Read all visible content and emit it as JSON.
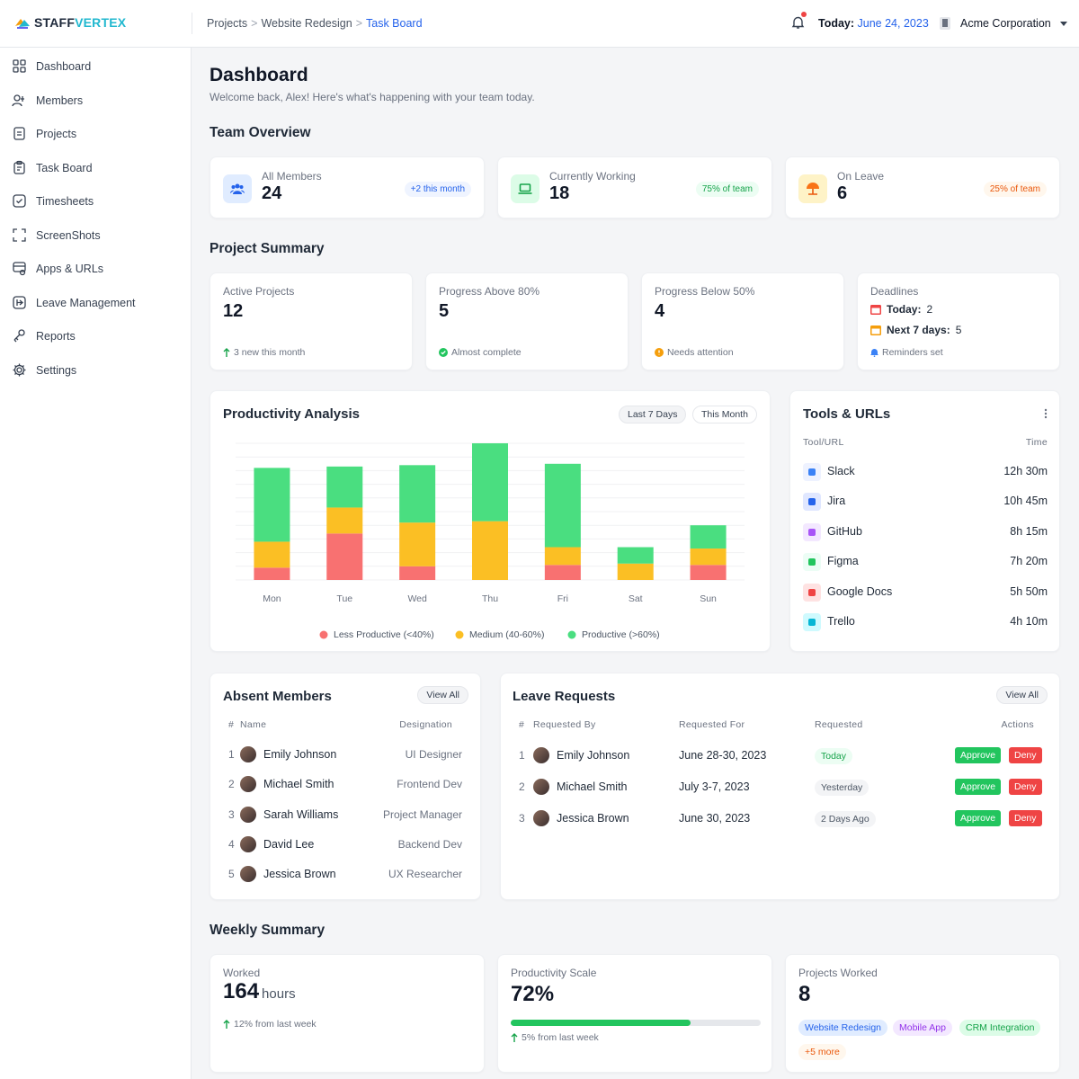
{
  "brand": {
    "part1": "STAFF",
    "part2": "VERTEX"
  },
  "breadcrumb": {
    "items": [
      "Projects",
      "Website Redesign"
    ],
    "current": "Task Board",
    "sep": ">"
  },
  "topbar": {
    "today_label": "Today:",
    "today_date": "June 24, 2023",
    "org": "Acme Corporation"
  },
  "sidebar": {
    "items": [
      {
        "label": "Dashboard",
        "icon": "grid-icon"
      },
      {
        "label": "Members",
        "icon": "users-icon"
      },
      {
        "label": "Projects",
        "icon": "folder-icon"
      },
      {
        "label": "Task Board",
        "icon": "clipboard-icon"
      },
      {
        "label": "Timesheets",
        "icon": "check-square-icon"
      },
      {
        "label": "ScreenShots",
        "icon": "screenshot-icon"
      },
      {
        "label": "Apps & URLs",
        "icon": "apps-icon"
      },
      {
        "label": "Leave Management",
        "icon": "leave-icon"
      },
      {
        "label": "Reports",
        "icon": "reports-icon"
      },
      {
        "label": "Settings",
        "icon": "gear-icon"
      }
    ]
  },
  "header": {
    "title": "Dashboard",
    "subtitle": "Welcome back, Alex! Here's what's happening with your team today."
  },
  "team_overview": {
    "title": "Team Overview",
    "cards": [
      {
        "label": "All Members",
        "value": "24",
        "pill": "+2 this month"
      },
      {
        "label": "Currently Working",
        "value": "18",
        "pill": "75% of team"
      },
      {
        "label": "On Leave",
        "value": "6",
        "pill": "25% of team"
      }
    ]
  },
  "project_summary": {
    "title": "Project Summary",
    "active": {
      "label": "Active Projects",
      "value": "12",
      "foot": "3 new this month"
    },
    "above": {
      "label": "Progress Above 80%",
      "value": "5",
      "foot": "Almost complete"
    },
    "below": {
      "label": "Progress Below 50%",
      "value": "4",
      "foot": "Needs attention"
    },
    "deadlines": {
      "label": "Deadlines",
      "today_label": "Today:",
      "today_value": "2",
      "next_label": "Next 7 days:",
      "next_value": "5",
      "foot": "Reminders set"
    }
  },
  "productivity": {
    "title": "Productivity Analysis",
    "tabs": [
      "Last 7 Days",
      "This Month"
    ]
  },
  "chart_data": {
    "type": "bar",
    "stacked": true,
    "categories": [
      "Mon",
      "Tue",
      "Wed",
      "Thu",
      "Fri",
      "Sat",
      "Sun"
    ],
    "series": [
      {
        "name": "Less Productive (<40%)",
        "color": "#f87171",
        "values": [
          9,
          34,
          10,
          0,
          11,
          0,
          11
        ]
      },
      {
        "name": "Medium (40-60%)",
        "color": "#fbbf24",
        "values": [
          19,
          19,
          32,
          43,
          13,
          12,
          12
        ]
      },
      {
        "name": "Productive (>60%)",
        "color": "#4ade80",
        "values": [
          54,
          30,
          42,
          57,
          61,
          12,
          17
        ]
      }
    ],
    "grid": true,
    "legend": "bottom"
  },
  "tools": {
    "title": "Tools & URLs",
    "col1": "Tool/URL",
    "col2": "Time",
    "rows": [
      {
        "name": "Slack",
        "time": "12h 30m",
        "color": "#3b82f6",
        "bg": "#eef2ff"
      },
      {
        "name": "Jira",
        "time": "10h 45m",
        "color": "#2563eb",
        "bg": "#e0e7ff"
      },
      {
        "name": "GitHub",
        "time": "8h 15m",
        "color": "#a855f7",
        "bg": "#f3e8ff"
      },
      {
        "name": "Figma",
        "time": "7h 20m",
        "color": "#22c55e",
        "bg": "#ecfdf5"
      },
      {
        "name": "Google Docs",
        "time": "5h 50m",
        "color": "#ef4444",
        "bg": "#fee2e2"
      },
      {
        "name": "Trello",
        "time": "4h 10m",
        "color": "#06b6d4",
        "bg": "#cffafe"
      }
    ]
  },
  "absent": {
    "title": "Absent Members",
    "view_all": "View All",
    "col_num": "#",
    "col_name": "Name",
    "col_desig": "Designation",
    "rows": [
      {
        "n": "1",
        "name": "Emily Johnson",
        "desig": "UI Designer"
      },
      {
        "n": "2",
        "name": "Michael Smith",
        "desig": "Frontend Dev"
      },
      {
        "n": "3",
        "name": "Sarah Williams",
        "desig": "Project Manager"
      },
      {
        "n": "4",
        "name": "David Lee",
        "desig": "Backend Dev"
      },
      {
        "n": "5",
        "name": "Jessica Brown",
        "desig": "UX Researcher"
      }
    ]
  },
  "leave": {
    "title": "Leave Requests",
    "view_all": "View All",
    "col_num": "#",
    "col_by": "Requested By",
    "col_for": "Requested For",
    "col_req": "Requested",
    "col_act": "Actions",
    "approve": "Approve",
    "deny": "Deny",
    "rows": [
      {
        "n": "1",
        "name": "Emily Johnson",
        "for": "June 28-30, 2023",
        "req": "Today"
      },
      {
        "n": "2",
        "name": "Michael Smith",
        "for": "July 3-7, 2023",
        "req": "Yesterday"
      },
      {
        "n": "3",
        "name": "Jessica Brown",
        "for": "June 30, 2023",
        "req": "2 Days Ago"
      }
    ]
  },
  "weekly": {
    "title": "Weekly Summary",
    "worked": {
      "label": "Worked",
      "value": "164",
      "unit": "hours",
      "foot": "12% from last week"
    },
    "scale": {
      "label": "Productivity Scale",
      "value": "72%",
      "progress": 0.72,
      "foot": "5% from last week"
    },
    "projects": {
      "label": "Projects Worked",
      "value": "8",
      "tags": [
        "Website Redesign",
        "Mobile App",
        "CRM Integration",
        "+5 more"
      ]
    }
  }
}
